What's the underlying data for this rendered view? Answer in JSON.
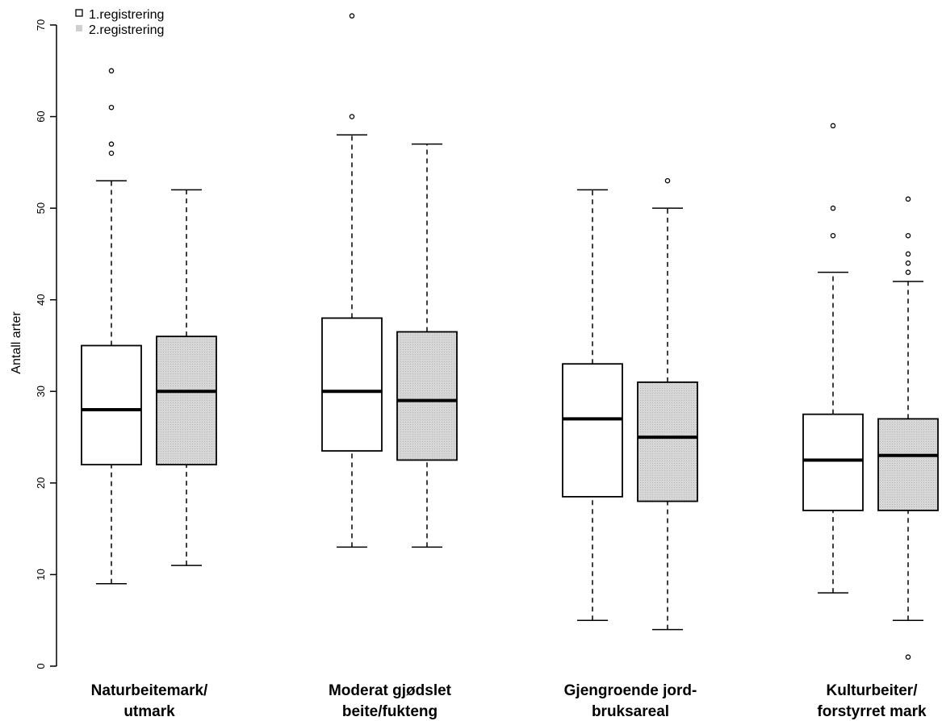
{
  "chart_data": {
    "type": "boxplot",
    "ylabel": "Antall arter",
    "ylim": [
      0,
      70
    ],
    "yticks": [
      "0",
      "10",
      "20",
      "30",
      "40",
      "50",
      "60",
      "70"
    ],
    "legend": {
      "position": "top-left",
      "entries": [
        "1.registrering",
        "2.registrering"
      ]
    },
    "series_colors": [
      "#ffffff",
      "#d3d3d3"
    ],
    "categories": [
      {
        "line1": "Naturbeitemark/",
        "line2": "utmark"
      },
      {
        "line1": "Moderat gjødslet",
        "line2": "beite/fukteng"
      },
      {
        "line1": "Gjengroende jord-",
        "line2": "bruksareal"
      },
      {
        "line1": "Kulturbeiter/",
        "line2": "forstyrret mark"
      }
    ],
    "series": [
      {
        "name": "1.registrering",
        "boxes": [
          {
            "whisker_low": 9,
            "q1": 22,
            "median": 28,
            "q3": 35,
            "whisker_high": 53,
            "outliers": [
              56,
              57,
              61,
              65
            ]
          },
          {
            "whisker_low": 13,
            "q1": 23.5,
            "median": 30,
            "q3": 38,
            "whisker_high": 58,
            "outliers": [
              60,
              71
            ]
          },
          {
            "whisker_low": 5,
            "q1": 18.5,
            "median": 27,
            "q3": 33,
            "whisker_high": 52,
            "outliers": []
          },
          {
            "whisker_low": 8,
            "q1": 17,
            "median": 22.5,
            "q3": 27.5,
            "whisker_high": 43,
            "outliers": [
              47,
              50,
              59
            ]
          }
        ]
      },
      {
        "name": "2.registrering",
        "boxes": [
          {
            "whisker_low": 11,
            "q1": 22,
            "median": 30,
            "q3": 36,
            "whisker_high": 52,
            "outliers": []
          },
          {
            "whisker_low": 13,
            "q1": 22.5,
            "median": 29,
            "q3": 36.5,
            "whisker_high": 57,
            "outliers": []
          },
          {
            "whisker_low": 4,
            "q1": 18,
            "median": 25,
            "q3": 31,
            "whisker_high": 50,
            "outliers": [
              53
            ]
          },
          {
            "whisker_low": 5,
            "q1": 17,
            "median": 23,
            "q3": 27,
            "whisker_high": 42,
            "outliers": [
              1,
              43,
              44,
              45,
              47,
              51
            ]
          }
        ]
      }
    ]
  }
}
